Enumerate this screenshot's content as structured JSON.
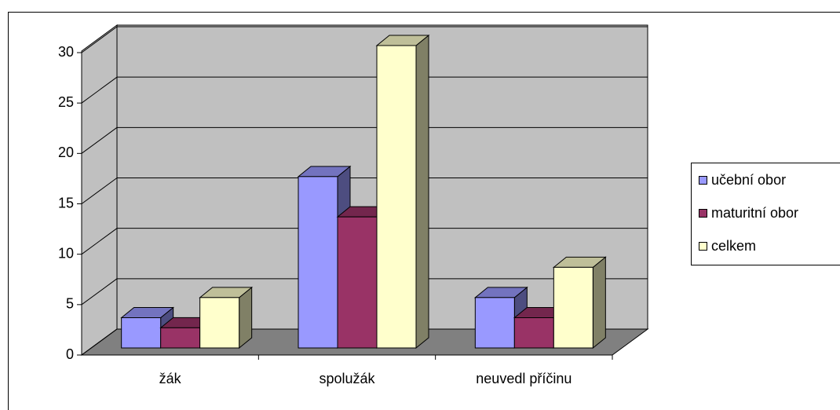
{
  "chart_data": {
    "type": "bar3d",
    "categories": [
      "žák",
      "spolužák",
      "neuvedl příčinu"
    ],
    "series": [
      {
        "name": "učební obor",
        "color": "#9999ff",
        "values": [
          3,
          17,
          5
        ]
      },
      {
        "name": "maturitní obor",
        "color": "#993366",
        "values": [
          2,
          13,
          3
        ]
      },
      {
        "name": "celkem",
        "color": "#ffffcc",
        "values": [
          5,
          30,
          8
        ]
      }
    ],
    "ylim": [
      0,
      30
    ],
    "yticks": [
      0,
      5,
      10,
      15,
      20,
      25,
      30
    ],
    "grid": true,
    "legend": "right"
  }
}
